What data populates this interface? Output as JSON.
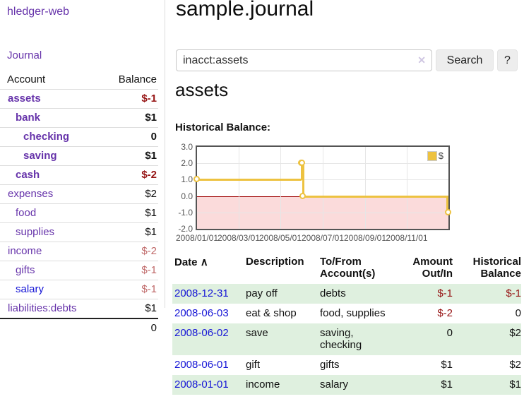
{
  "header": {
    "title": "sample.journal"
  },
  "sidebar": {
    "brand": "hledger-web",
    "nav_journal": "Journal",
    "table": {
      "account_header": "Account",
      "balance_header": "Balance",
      "rows": [
        {
          "account": "assets",
          "balance": "$-1",
          "indent": 1,
          "bold": true,
          "tone": "neg"
        },
        {
          "account": "bank",
          "balance": "$1",
          "indent": 2,
          "bold": true,
          "tone": "pos"
        },
        {
          "account": "checking",
          "balance": "0",
          "indent": 3,
          "bold": true,
          "tone": "pos"
        },
        {
          "account": "saving",
          "balance": "$1",
          "indent": 3,
          "bold": true,
          "tone": "pos"
        },
        {
          "account": "cash",
          "balance": "$-2",
          "indent": 2,
          "bold": true,
          "tone": "neg"
        },
        {
          "account": "expenses",
          "balance": "$2",
          "indent": 1,
          "bold": false,
          "tone": "pos"
        },
        {
          "account": "food",
          "balance": "$1",
          "indent": 2,
          "bold": false,
          "tone": "pos"
        },
        {
          "account": "supplies",
          "balance": "$1",
          "indent": 2,
          "bold": false,
          "tone": "pos"
        },
        {
          "account": "income",
          "balance": "$-2",
          "indent": 1,
          "bold": false,
          "tone": "negl"
        },
        {
          "account": "gifts",
          "balance": "$-1",
          "indent": 2,
          "bold": false,
          "tone": "negl"
        },
        {
          "account": "salary",
          "balance": "$-1",
          "indent": 2,
          "bold": false,
          "tone": "negl",
          "link_blue": true
        },
        {
          "account": "liabilities:debts",
          "balance": "$1",
          "indent": 1,
          "bold": false,
          "tone": "pos"
        }
      ],
      "total": "0"
    }
  },
  "search": {
    "value": "inacct:assets",
    "clear_icon": "✕",
    "button_label": "Search",
    "help_label": "?"
  },
  "account_page": {
    "heading": "assets",
    "chart_label": "Historical Balance:"
  },
  "chart_data": {
    "type": "line",
    "style": "steps",
    "title": "Historical Balance:",
    "series": [
      {
        "name": "$",
        "points": [
          [
            "2008-01-01",
            1
          ],
          [
            "2008-06-01",
            2
          ],
          [
            "2008-06-02",
            2
          ],
          [
            "2008-06-03",
            0
          ],
          [
            "2008-12-31",
            -1
          ]
        ]
      }
    ],
    "ylim": [
      -2,
      3
    ],
    "yticks": [
      "3.0",
      "2.0",
      "1.0",
      "0.0",
      "-1.0",
      "-2.0"
    ],
    "xticks": [
      "2008/01/01",
      "2008/03/01",
      "2008/05/01",
      "2008/07/01",
      "2008/09/01",
      "2008/11/01"
    ],
    "xrange": [
      "2008/01/01",
      "2008/12/31"
    ],
    "grid": true,
    "negative_region_shaded": true,
    "legend": {
      "position": "top-right",
      "entries": [
        "$"
      ]
    }
  },
  "register": {
    "headers": {
      "date": "Date",
      "sort_icon": "∧",
      "description": "Description",
      "accounts": "To/From Account(s)",
      "amount": "Amount Out/In",
      "balance": "Historical Balance"
    },
    "rows": [
      {
        "date": "2008-12-31",
        "description": "pay off",
        "accounts": "debts",
        "amount": "$-1",
        "balance": "$-1",
        "amount_tone": "neg",
        "balance_tone": "neg",
        "shade": true
      },
      {
        "date": "2008-06-03",
        "description": "eat & shop",
        "accounts": "food, supplies",
        "amount": "$-2",
        "balance": "0",
        "amount_tone": "neg",
        "balance_tone": "pos",
        "shade": false
      },
      {
        "date": "2008-06-02",
        "description": "save",
        "accounts": "saving, checking",
        "amount": "0",
        "balance": "$2",
        "amount_tone": "pos",
        "balance_tone": "pos",
        "shade": true
      },
      {
        "date": "2008-06-01",
        "description": "gift",
        "accounts": "gifts",
        "amount": "$1",
        "balance": "$2",
        "amount_tone": "pos",
        "balance_tone": "pos",
        "shade": false
      },
      {
        "date": "2008-01-01",
        "description": "income",
        "accounts": "salary",
        "amount": "$1",
        "balance": "$1",
        "amount_tone": "pos",
        "balance_tone": "pos",
        "shade": true
      }
    ]
  },
  "colors": {
    "link_purple": "#6633aa",
    "link_blue": "#1616d6",
    "negative": "#961414",
    "negative_light": "#c06a6a",
    "row_green": "#dff0df",
    "button_bg": "#ededed",
    "series_yellow": "#edc240",
    "negative_region_pink": "#fbdbdb",
    "zero_line": "#9d0000",
    "grid": "#e6e6e6",
    "chart_border": "#545454"
  }
}
